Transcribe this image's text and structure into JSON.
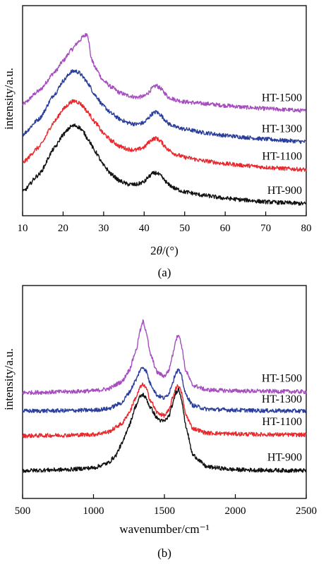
{
  "chart_data": [
    {
      "type": "line",
      "panel_label": "(a)",
      "xlabel_prefix": "2",
      "xlabel_symbol": "θ",
      "xlabel_suffix": "/(°)",
      "ylabel": "intensity/a.u.",
      "xlim": [
        10,
        80
      ],
      "ylim": [
        0,
        10
      ],
      "xticks": [
        10,
        20,
        30,
        40,
        50,
        60,
        70,
        80
      ],
      "grid": false,
      "legend_placement": "inline-right",
      "series": [
        {
          "name": "HT-1500",
          "color": "#a64dc0",
          "x": [
            10,
            14,
            18,
            20,
            22,
            24,
            25,
            26,
            27,
            28,
            30,
            32,
            34,
            36,
            38,
            40,
            41,
            42,
            43,
            44,
            45,
            46,
            48,
            50,
            55,
            60,
            65,
            70,
            75,
            80
          ],
          "y": [
            5.8,
            6.55,
            7.6,
            8.2,
            8.8,
            9.3,
            9.55,
            9.7,
            8.3,
            7.8,
            7.1,
            6.75,
            6.45,
            6.3,
            6.2,
            6.25,
            6.45,
            6.7,
            6.85,
            6.7,
            6.45,
            6.2,
            6.05,
            5.95,
            5.85,
            5.75,
            5.65,
            5.58,
            5.52,
            5.45
          ]
        },
        {
          "name": "HT-1300",
          "color": "#2a3e9c",
          "x": [
            10,
            14,
            18,
            20,
            22,
            23,
            24,
            25,
            26,
            28,
            30,
            32,
            34,
            36,
            38,
            40,
            41,
            42,
            43,
            44,
            45,
            46,
            48,
            50,
            55,
            60,
            65,
            70,
            75,
            80
          ],
          "y": [
            4.15,
            5.0,
            6.4,
            7.1,
            7.6,
            7.65,
            7.55,
            7.3,
            7.0,
            6.3,
            5.7,
            5.3,
            5.0,
            4.8,
            4.72,
            4.8,
            5.05,
            5.3,
            5.4,
            5.25,
            5.0,
            4.75,
            4.55,
            4.45,
            4.25,
            4.1,
            4.0,
            3.9,
            3.82,
            3.75
          ]
        },
        {
          "name": "HT-1100",
          "color": "#e8282c",
          "x": [
            10,
            14,
            18,
            20,
            22,
            23,
            24,
            25,
            26,
            28,
            30,
            32,
            34,
            36,
            38,
            40,
            41,
            42,
            43,
            44,
            45,
            46,
            48,
            50,
            55,
            60,
            65,
            70,
            75,
            80
          ],
          "y": [
            2.6,
            3.45,
            4.9,
            5.55,
            5.95,
            6.0,
            5.9,
            5.7,
            5.4,
            4.8,
            4.2,
            3.8,
            3.5,
            3.35,
            3.3,
            3.45,
            3.7,
            3.9,
            3.95,
            3.8,
            3.55,
            3.3,
            3.05,
            2.9,
            2.7,
            2.55,
            2.45,
            2.35,
            2.28,
            2.22
          ]
        },
        {
          "name": "HT-900",
          "color": "#111111",
          "x": [
            10,
            14,
            18,
            20,
            22,
            23,
            24,
            25,
            26,
            28,
            30,
            32,
            34,
            36,
            38,
            40,
            41,
            42,
            43,
            44,
            45,
            46,
            48,
            50,
            55,
            60,
            65,
            70,
            75,
            80
          ],
          "y": [
            1.0,
            1.95,
            3.45,
            4.15,
            4.6,
            4.65,
            4.55,
            4.3,
            3.95,
            3.2,
            2.45,
            1.95,
            1.6,
            1.42,
            1.4,
            1.55,
            1.8,
            2.0,
            2.05,
            1.9,
            1.65,
            1.4,
            1.15,
            1.0,
            0.8,
            0.65,
            0.55,
            0.45,
            0.4,
            0.35
          ]
        }
      ]
    },
    {
      "type": "line",
      "panel_label": "(b)",
      "xlabel": "wavenumber/cm⁻¹",
      "ylabel": "intensity/a.u.",
      "xlim": [
        500,
        2500
      ],
      "ylim": [
        0,
        10
      ],
      "xticks": [
        500,
        1000,
        1500,
        2000,
        2500
      ],
      "grid": false,
      "legend_placement": "inline-right",
      "series": [
        {
          "name": "HT-1500",
          "color": "#a64dc0",
          "x": [
            500,
            800,
            1000,
            1100,
            1200,
            1250,
            1300,
            1330,
            1350,
            1370,
            1400,
            1450,
            1500,
            1530,
            1560,
            1580,
            1600,
            1620,
            1650,
            1700,
            1800,
            2000,
            2200,
            2500
          ],
          "y": [
            5.5,
            5.55,
            5.6,
            5.7,
            6.1,
            6.7,
            7.8,
            8.9,
            9.4,
            8.9,
            7.6,
            6.6,
            6.4,
            6.7,
            7.6,
            8.4,
            8.7,
            8.1,
            6.7,
            5.9,
            5.65,
            5.6,
            5.58,
            5.55
          ]
        },
        {
          "name": "HT-1300",
          "color": "#2a3e9c",
          "x": [
            500,
            800,
            1000,
            1100,
            1200,
            1250,
            1300,
            1330,
            1350,
            1370,
            1400,
            1450,
            1500,
            1530,
            1560,
            1580,
            1600,
            1620,
            1650,
            1700,
            1800,
            2000,
            2200,
            2500
          ],
          "y": [
            4.5,
            4.52,
            4.55,
            4.62,
            4.95,
            5.5,
            6.2,
            6.75,
            6.9,
            6.7,
            6.0,
            5.35,
            5.2,
            5.45,
            6.1,
            6.6,
            6.75,
            6.4,
            5.4,
            4.8,
            4.6,
            4.55,
            4.52,
            4.5
          ]
        },
        {
          "name": "HT-1100",
          "color": "#e8282c",
          "x": [
            500,
            800,
            1000,
            1100,
            1200,
            1250,
            1300,
            1330,
            1350,
            1370,
            1400,
            1450,
            1500,
            1530,
            1560,
            1580,
            1600,
            1620,
            1650,
            1700,
            1800,
            2000,
            2200,
            2500
          ],
          "y": [
            3.15,
            3.18,
            3.22,
            3.35,
            3.8,
            4.4,
            5.25,
            5.8,
            5.95,
            5.75,
            5.1,
            4.4,
            4.25,
            4.5,
            5.25,
            5.75,
            5.9,
            5.5,
            4.3,
            3.55,
            3.3,
            3.25,
            3.22,
            3.2
          ]
        },
        {
          "name": "HT-900",
          "color": "#111111",
          "x": [
            500,
            800,
            1000,
            1100,
            1150,
            1200,
            1250,
            1300,
            1330,
            1350,
            1370,
            1400,
            1450,
            1480,
            1500,
            1530,
            1560,
            1580,
            1600,
            1620,
            1650,
            1700,
            1800,
            2000,
            2200,
            2500
          ],
          "y": [
            1.25,
            1.3,
            1.4,
            1.65,
            2.0,
            2.7,
            3.7,
            4.8,
            5.3,
            5.4,
            5.2,
            4.7,
            4.1,
            3.95,
            3.95,
            4.2,
            4.9,
            5.5,
            5.7,
            5.2,
            3.7,
            2.1,
            1.45,
            1.3,
            1.27,
            1.25
          ]
        }
      ]
    }
  ]
}
